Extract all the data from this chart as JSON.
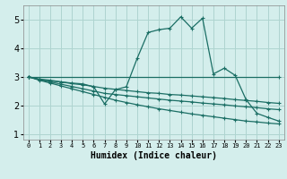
{
  "xlabel": "Humidex (Indice chaleur)",
  "bg_color": "#d4eeec",
  "grid_color": "#aed4d0",
  "line_color": "#1a6e64",
  "xlim": [
    -0.5,
    23.5
  ],
  "ylim": [
    0.8,
    5.5
  ],
  "yticks": [
    1,
    2,
    3,
    4,
    5
  ],
  "xticks": [
    0,
    1,
    2,
    3,
    4,
    5,
    6,
    7,
    8,
    9,
    10,
    11,
    12,
    13,
    14,
    15,
    16,
    17,
    18,
    19,
    20,
    21,
    22,
    23
  ],
  "lines": [
    {
      "x": [
        0,
        1,
        2,
        3,
        4,
        5,
        6,
        7,
        8,
        9,
        10,
        11,
        12,
        13,
        14,
        15,
        16,
        17,
        18,
        19,
        20,
        21,
        22,
        23
      ],
      "y": [
        3.0,
        2.9,
        2.85,
        2.82,
        2.78,
        2.75,
        2.65,
        2.05,
        2.55,
        2.65,
        3.65,
        4.55,
        4.65,
        4.7,
        5.1,
        4.7,
        5.05,
        3.1,
        3.3,
        3.05,
        2.2,
        1.72,
        1.58,
        1.45
      ]
    },
    {
      "x": [
        0,
        23
      ],
      "y": [
        3.0,
        3.0
      ]
    },
    {
      "x": [
        0,
        1,
        2,
        3,
        4,
        5,
        6,
        7,
        8,
        9,
        10,
        11,
        12,
        13,
        14,
        15,
        16,
        17,
        18,
        19,
        20,
        21,
        22,
        23
      ],
      "y": [
        3.0,
        2.92,
        2.88,
        2.82,
        2.76,
        2.72,
        2.66,
        2.6,
        2.56,
        2.52,
        2.48,
        2.44,
        2.42,
        2.38,
        2.36,
        2.33,
        2.3,
        2.27,
        2.24,
        2.2,
        2.17,
        2.14,
        2.1,
        2.07
      ]
    },
    {
      "x": [
        0,
        1,
        2,
        3,
        4,
        5,
        6,
        7,
        8,
        9,
        10,
        11,
        12,
        13,
        14,
        15,
        16,
        17,
        18,
        19,
        20,
        21,
        22,
        23
      ],
      "y": [
        3.0,
        2.9,
        2.82,
        2.74,
        2.66,
        2.58,
        2.5,
        2.42,
        2.38,
        2.34,
        2.3,
        2.26,
        2.22,
        2.18,
        2.15,
        2.12,
        2.08,
        2.05,
        2.02,
        1.98,
        1.95,
        1.92,
        1.88,
        1.85
      ]
    },
    {
      "x": [
        0,
        1,
        2,
        3,
        4,
        5,
        6,
        7,
        8,
        9,
        10,
        11,
        12,
        13,
        14,
        15,
        16,
        17,
        18,
        19,
        20,
        21,
        22,
        23
      ],
      "y": [
        3.0,
        2.88,
        2.78,
        2.68,
        2.58,
        2.48,
        2.38,
        2.28,
        2.18,
        2.1,
        2.02,
        1.95,
        1.88,
        1.82,
        1.76,
        1.7,
        1.65,
        1.6,
        1.55,
        1.5,
        1.45,
        1.42,
        1.38,
        1.35
      ]
    }
  ]
}
